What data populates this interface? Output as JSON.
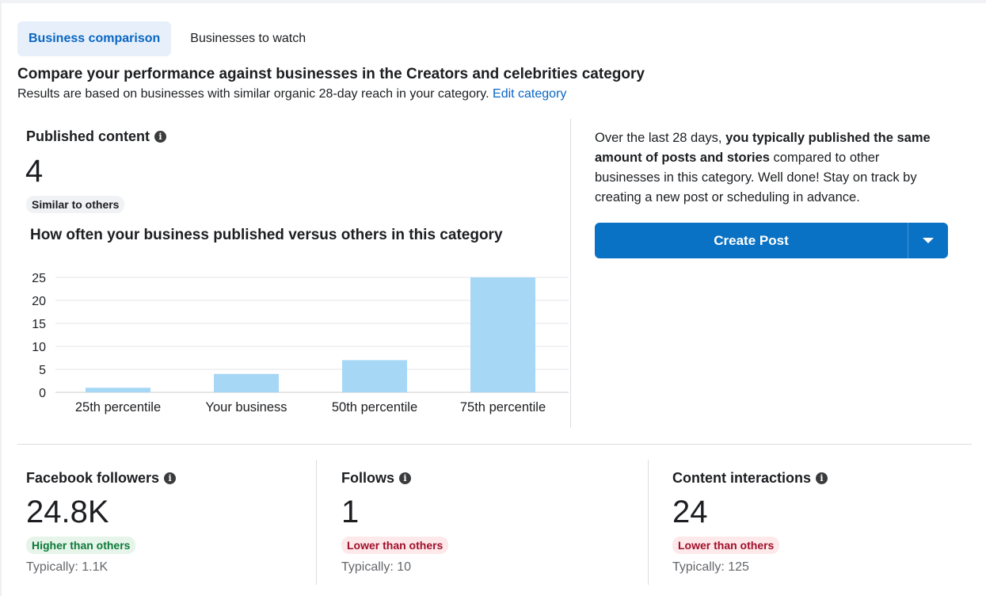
{
  "tabs": [
    {
      "label": "Business comparison",
      "active": true
    },
    {
      "label": "Businesses to watch",
      "active": false
    }
  ],
  "heading": "Compare your performance against businesses in the Creators and celebrities category",
  "subheading": {
    "text": "Results are based on businesses with similar organic 28-day reach in your category.",
    "link": "Edit category"
  },
  "published": {
    "title": "Published content",
    "value": "4",
    "badge": "Similar to others",
    "chart_title": "How often your business published versus others in this category"
  },
  "chart_data": {
    "type": "bar",
    "categories": [
      "25th percentile",
      "Your business",
      "50th percentile",
      "75th percentile"
    ],
    "values": [
      1,
      4,
      7,
      25
    ],
    "title": "How often your business published versus others in this category",
    "xlabel": "",
    "ylabel": "",
    "ylim": [
      0,
      25
    ],
    "yticks": [
      0,
      5,
      10,
      15,
      20,
      25
    ],
    "grid": true,
    "bar_color": "#a6d8f6"
  },
  "insight": {
    "prefix": "Over the last 28 days, ",
    "bold": "you typically published the same amount of posts and stories",
    "suffix": " compared to other businesses in this category. Well done! Stay on track by creating a new post or scheduling in advance."
  },
  "create_post": {
    "label": "Create Post"
  },
  "metrics": [
    {
      "title": "Facebook followers",
      "value": "24.8K",
      "badge": "Higher than others",
      "status": "higher",
      "typical": "Typically: 1.1K"
    },
    {
      "title": "Follows",
      "value": "1",
      "badge": "Lower than others",
      "status": "lower",
      "typical": "Typically: 10"
    },
    {
      "title": "Content interactions",
      "value": "24",
      "badge": "Lower than others",
      "status": "lower",
      "typical": "Typically: 125"
    }
  ],
  "colors": {
    "accent": "#0a72c4",
    "link": "#0a66c2",
    "higher": "#0d7a3a",
    "lower": "#a0102a"
  }
}
